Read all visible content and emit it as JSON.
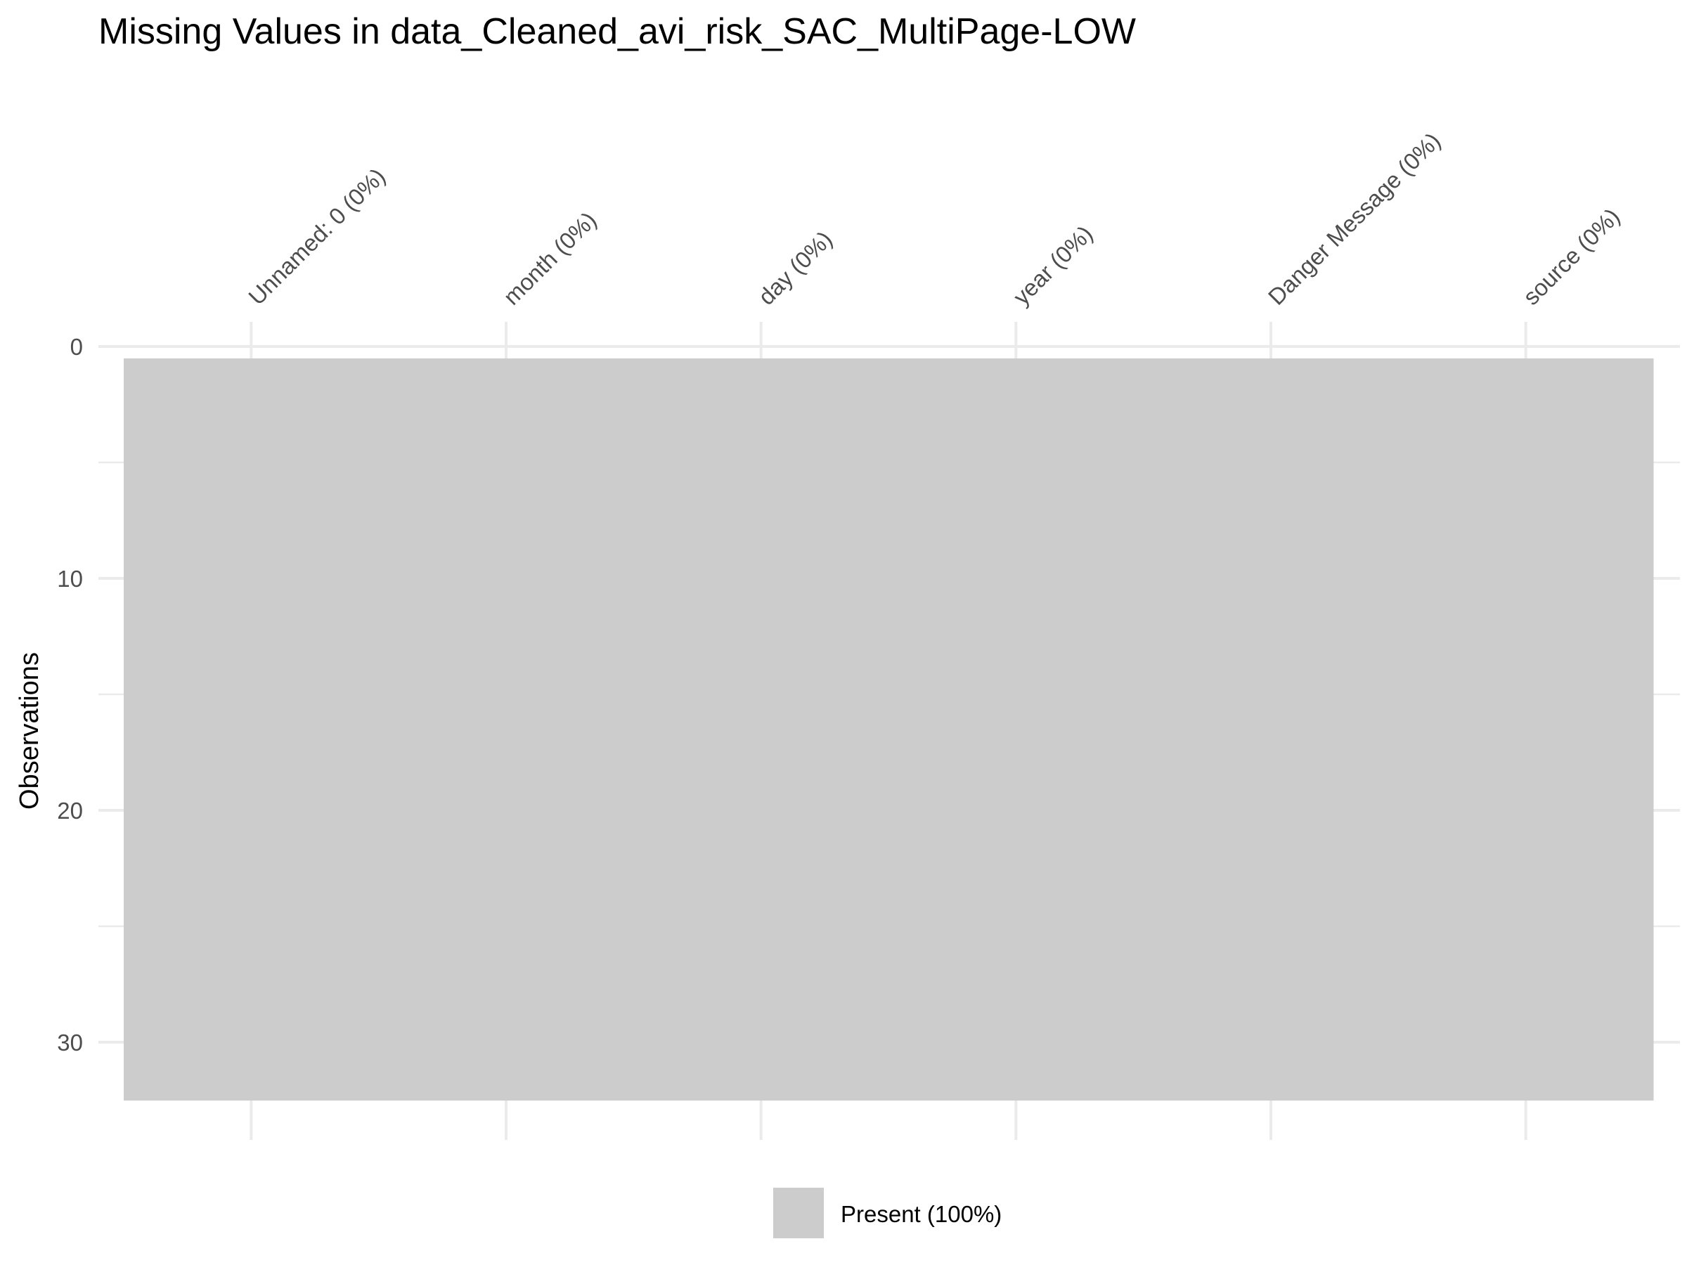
{
  "chart_data": {
    "type": "heatmap",
    "title": "Missing Values in data_Cleaned_avi_risk_SAC_MultiPage-LOW",
    "ylabel": "Observations",
    "columns": [
      "Unnamed: 0 (0%)",
      "month (0%)",
      "day (0%)",
      "year (0%)",
      "Danger Message (0%)",
      "source (0%)"
    ],
    "y_ticks": [
      0,
      10,
      20,
      30
    ],
    "ylim": [
      0,
      32
    ],
    "y_reversed": true,
    "rows_observed": 32,
    "missing_percent": [
      0,
      0,
      0,
      0,
      0,
      0
    ],
    "grid": true,
    "legend": {
      "position": "bottom",
      "entries": [
        {
          "label": "Present (100%)",
          "color": "#cccccc"
        }
      ]
    },
    "colors": {
      "present": "#cccccc",
      "grid": "#ebebeb"
    }
  }
}
